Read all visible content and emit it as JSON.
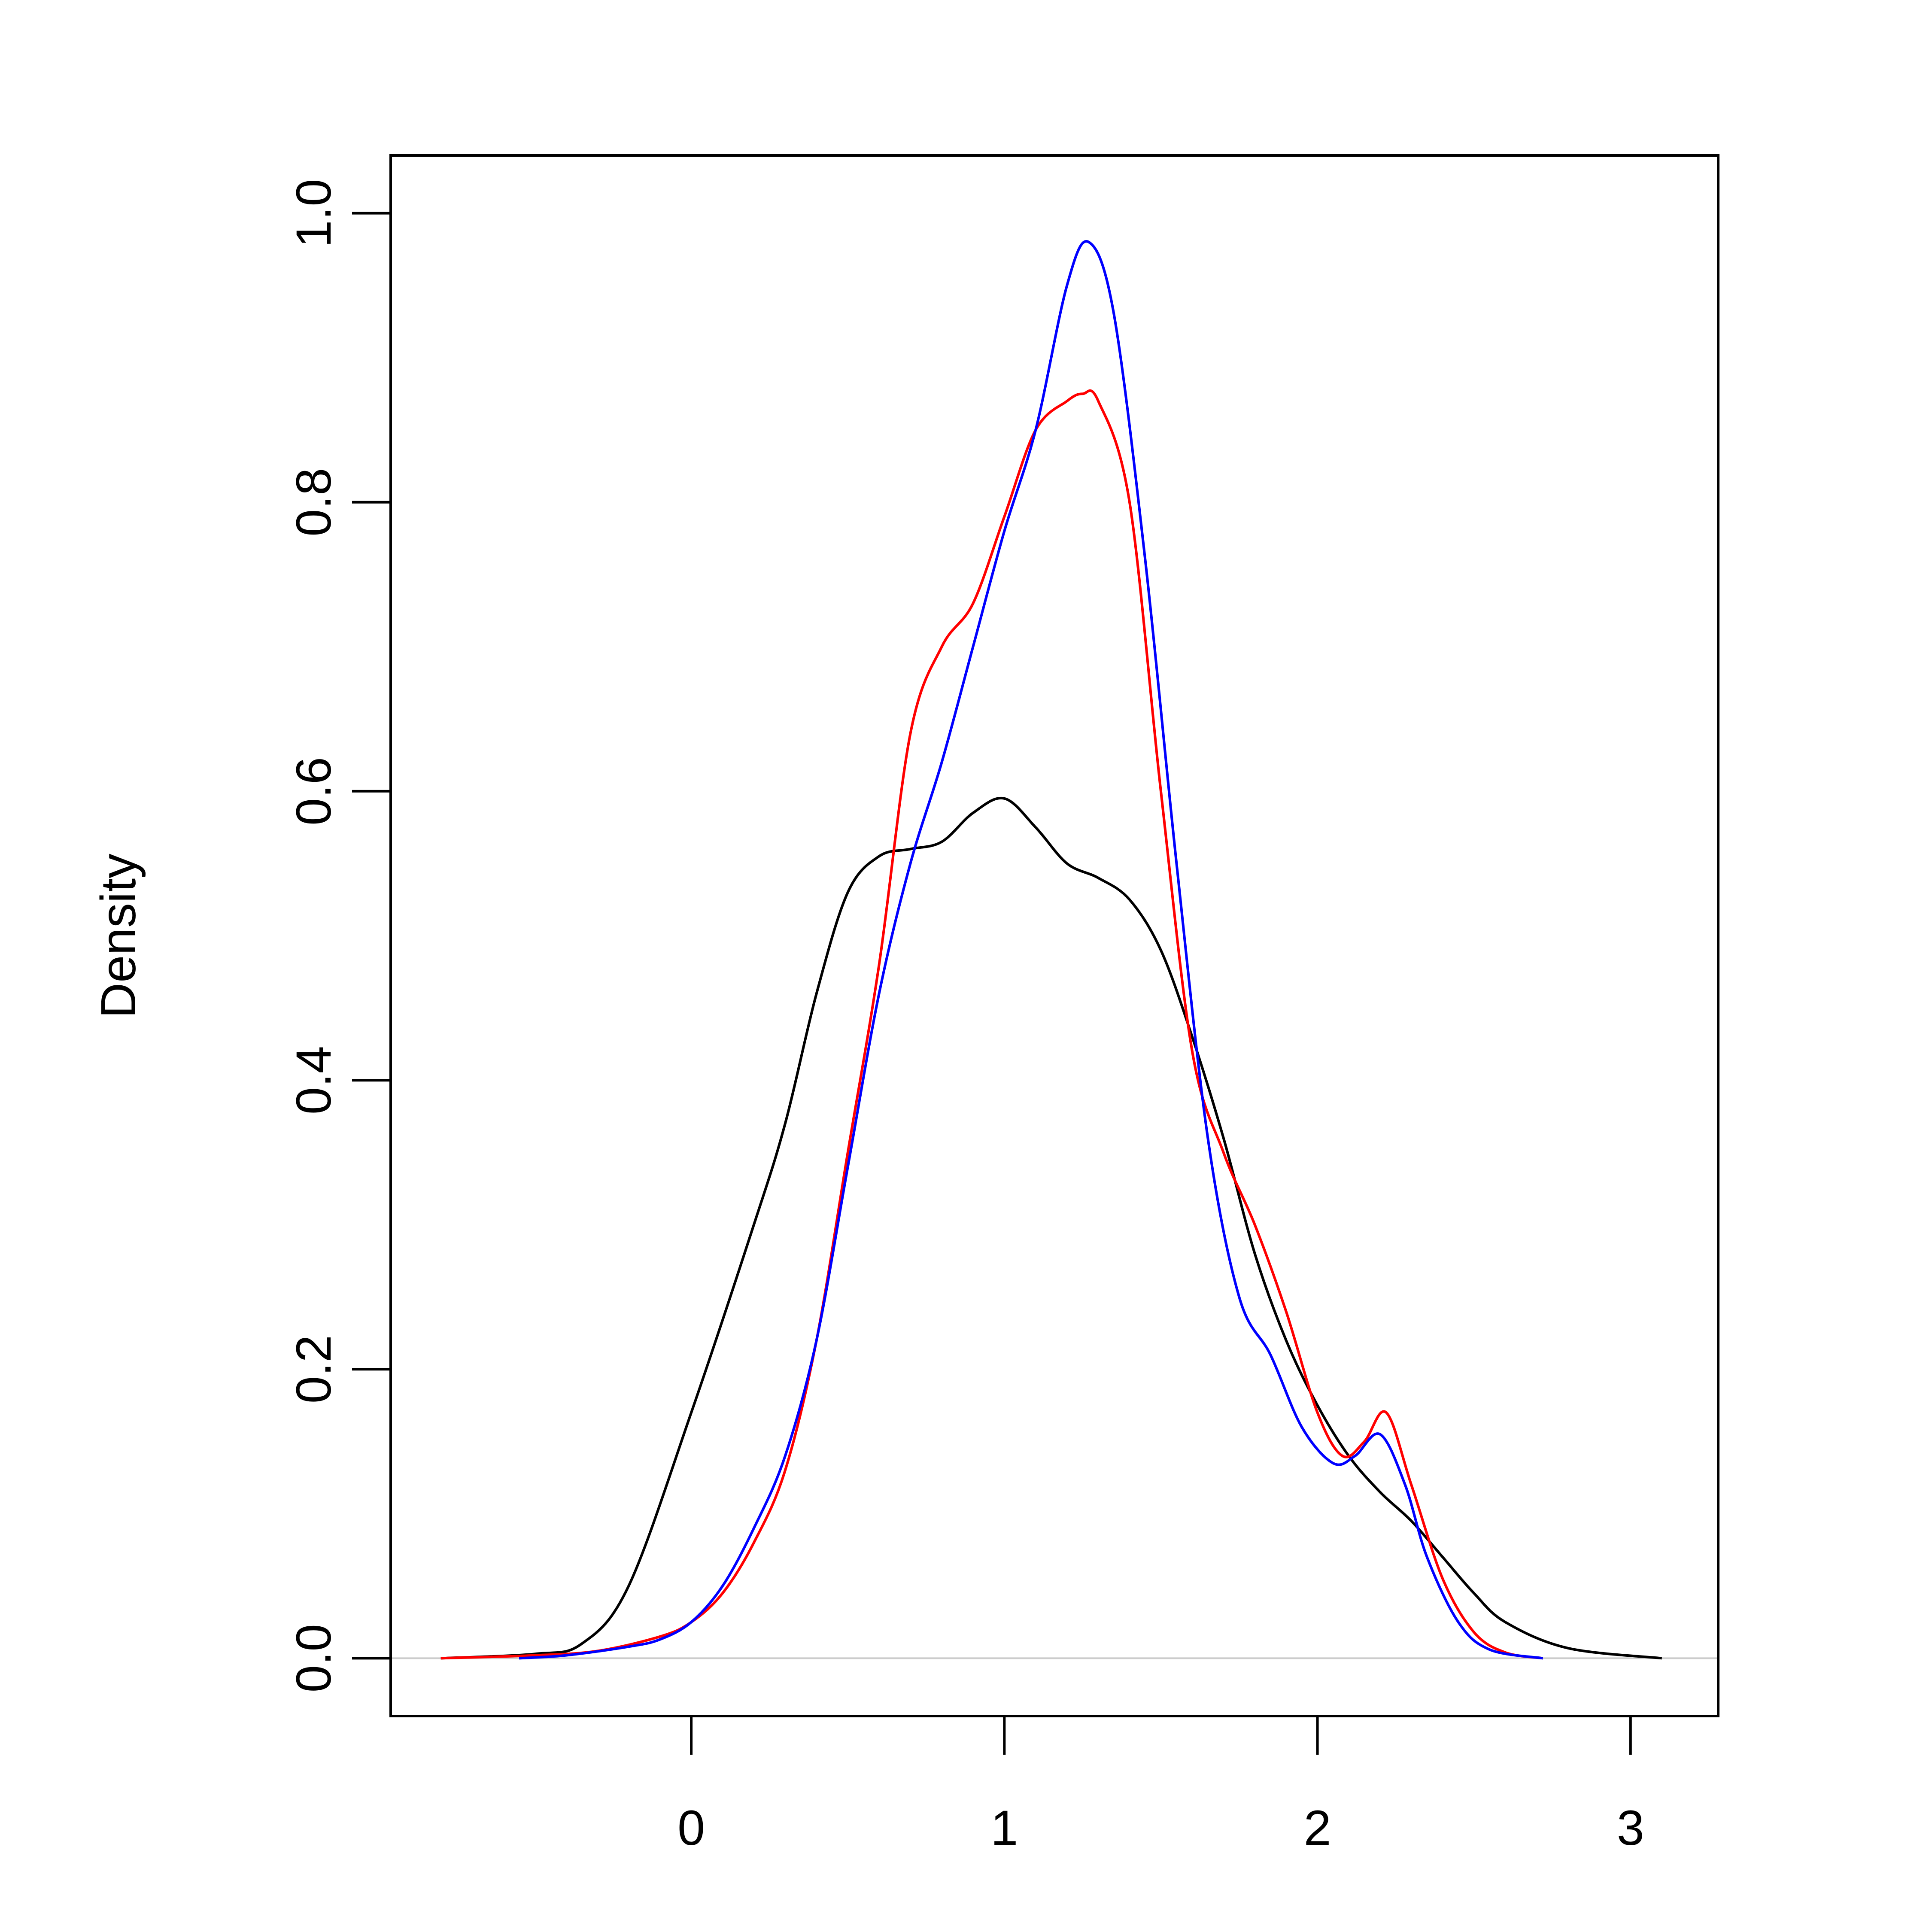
{
  "chart_data": {
    "type": "line",
    "title": "",
    "xlabel": "",
    "ylabel": "Density",
    "xlim": [
      -0.96,
      3.28
    ],
    "ylim": [
      -0.04,
      1.04
    ],
    "x_ticks": [
      "0",
      "1",
      "2",
      "3"
    ],
    "x_tick_values": [
      0,
      1,
      2,
      3
    ],
    "y_ticks": [
      "0.0",
      "0.2",
      "0.4",
      "0.6",
      "0.8",
      "1.0"
    ],
    "y_tick_values": [
      0,
      0.2,
      0.4,
      0.6,
      0.8,
      1.0
    ],
    "baseline": {
      "y": 0,
      "color": "#cccccc"
    },
    "grid": false,
    "legend": "none",
    "series": [
      {
        "color": "#000000",
        "x": [
          -0.8,
          -0.5,
          -0.35,
          -0.2,
          0.0,
          0.2,
          0.3,
          0.4,
          0.5,
          0.6,
          0.7,
          0.8,
          0.9,
          1.0,
          1.1,
          1.2,
          1.3,
          1.4,
          1.5,
          1.6,
          1.7,
          1.8,
          1.9,
          2.0,
          2.1,
          2.2,
          2.3,
          2.4,
          2.5,
          2.6,
          2.8,
          3.1
        ],
        "y": [
          0.0,
          0.003,
          0.01,
          0.05,
          0.17,
          0.3,
          0.37,
          0.46,
          0.53,
          0.555,
          0.56,
          0.565,
          0.585,
          0.595,
          0.575,
          0.55,
          0.54,
          0.525,
          0.49,
          0.43,
          0.36,
          0.28,
          0.22,
          0.175,
          0.14,
          0.115,
          0.095,
          0.07,
          0.045,
          0.025,
          0.007,
          0.0
        ]
      },
      {
        "color": "#ff0000",
        "x": [
          -0.8,
          -0.5,
          -0.3,
          -0.1,
          0.0,
          0.1,
          0.2,
          0.3,
          0.4,
          0.5,
          0.6,
          0.7,
          0.8,
          0.9,
          1.0,
          1.1,
          1.2,
          1.25,
          1.3,
          1.4,
          1.5,
          1.6,
          1.7,
          1.8,
          1.9,
          2.0,
          2.08,
          2.15,
          2.22,
          2.3,
          2.4,
          2.5,
          2.6,
          2.72
        ],
        "y": [
          0.0,
          0.002,
          0.005,
          0.015,
          0.025,
          0.045,
          0.08,
          0.13,
          0.22,
          0.35,
          0.48,
          0.64,
          0.7,
          0.73,
          0.79,
          0.85,
          0.87,
          0.875,
          0.87,
          0.8,
          0.6,
          0.42,
          0.35,
          0.3,
          0.24,
          0.17,
          0.14,
          0.15,
          0.17,
          0.12,
          0.055,
          0.018,
          0.004,
          0.0
        ]
      },
      {
        "color": "#0000ff",
        "x": [
          -0.55,
          -0.4,
          -0.2,
          -0.1,
          0.0,
          0.1,
          0.2,
          0.3,
          0.4,
          0.5,
          0.6,
          0.7,
          0.8,
          0.9,
          1.0,
          1.1,
          1.2,
          1.27,
          1.35,
          1.45,
          1.55,
          1.65,
          1.75,
          1.85,
          1.95,
          2.05,
          2.12,
          2.2,
          2.28,
          2.35,
          2.45,
          2.55,
          2.72
        ],
        "y": [
          0.0,
          0.002,
          0.008,
          0.013,
          0.025,
          0.05,
          0.09,
          0.14,
          0.22,
          0.34,
          0.46,
          0.55,
          0.62,
          0.7,
          0.78,
          0.85,
          0.95,
          0.98,
          0.93,
          0.76,
          0.55,
          0.36,
          0.25,
          0.21,
          0.16,
          0.135,
          0.14,
          0.155,
          0.12,
          0.07,
          0.025,
          0.006,
          0.0
        ]
      }
    ]
  }
}
